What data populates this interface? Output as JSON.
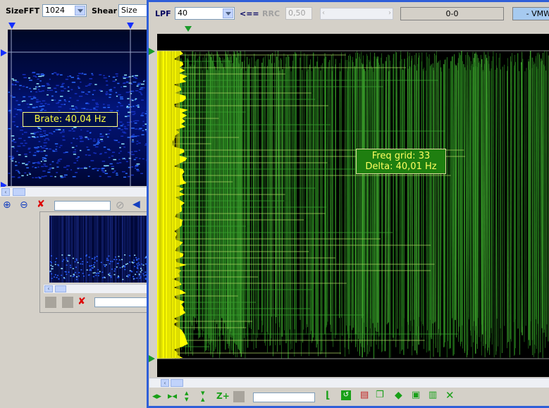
{
  "left_toolbar": {
    "sizefft_label": "SizeFFT",
    "sizefft_value": "1024",
    "shear_label": "Shear",
    "size_value": "Size"
  },
  "left_spectrogram": {
    "brate_tooltip": "Brate: 40,04 Hz"
  },
  "main_toolbar": {
    "lpf_label": "LPF",
    "lpf_value": "40",
    "arrow_button": "<==",
    "rrc_label": "RRC",
    "rrc_value": "0,50",
    "range_display": "0-0",
    "mode_display": "- VMW"
  },
  "main_plot": {
    "freq_grid_text": "Freq grid: 33",
    "delta_text": "Delta: 40,01 Hz"
  },
  "colors": {
    "window_blue": "#2f5fd8",
    "plot_bg": "#000000",
    "signal_yellow": "#ffff00",
    "signal_green": "#2f8f1f",
    "tooltip_bg_green": "#1f7f10",
    "tooltip_bg_blue": "#00104a"
  }
}
